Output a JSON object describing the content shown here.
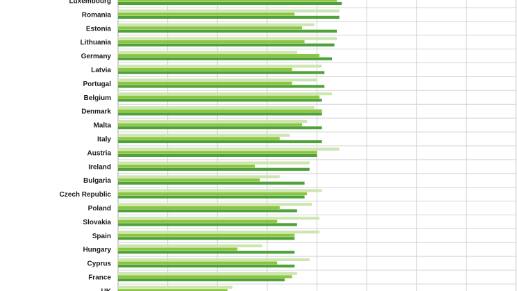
{
  "chart_data": {
    "type": "bar",
    "orientation": "horizontal",
    "categories": [
      "Luxembourg",
      "Romania",
      "Estonia",
      "Lithuania",
      "Germany",
      "Latvia",
      "Portugal",
      "Belgium",
      "Denmark",
      "Malta",
      "Italy",
      "Austria",
      "Ireland",
      "Bulgaria",
      "Czech Republic",
      "Poland",
      "Slovakia",
      "Spain",
      "Hungary",
      "Cyprus",
      "France",
      "UK"
    ],
    "series": [
      {
        "values": [
          90,
          89,
          79,
          88,
          72,
          82,
          80,
          86,
          79,
          76,
          69,
          89,
          77,
          65,
          82,
          78,
          81,
          81,
          58,
          77,
          72,
          46
        ]
      },
      {
        "values": [
          88,
          71,
          74,
          75,
          81,
          70,
          70,
          81,
          82,
          74,
          65,
          80,
          55,
          57,
          76,
          65,
          64,
          71,
          48,
          64,
          70,
          44
        ]
      },
      {
        "values": [
          90,
          89,
          88,
          87,
          86,
          83,
          83,
          82,
          82,
          82,
          82,
          80,
          77,
          75,
          75,
          72,
          72,
          71,
          71,
          71,
          67,
          61
        ]
      }
    ],
    "series_colors": [
      "#cde6b0",
      "#8cc63f",
      "#4fa23a"
    ],
    "xlim": [
      0,
      160
    ],
    "grid": true,
    "gridline_step": 20
  }
}
